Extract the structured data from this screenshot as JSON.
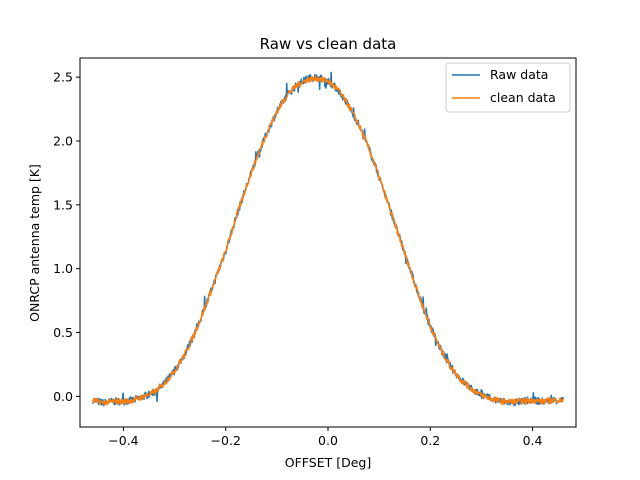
{
  "chart_data": {
    "type": "line",
    "title": "Raw vs clean data",
    "xlabel": "OFFSET [Deg]",
    "ylabel": "ONRCP antenna temp [K]",
    "xlim": [
      -0.485,
      0.485
    ],
    "ylim": [
      -0.24,
      2.65
    ],
    "x_ticks": [
      -0.4,
      -0.2,
      0.0,
      0.2,
      0.4
    ],
    "x_tick_labels": [
      "−0.4",
      "−0.2",
      "0.0",
      "0.2",
      "0.4"
    ],
    "y_ticks": [
      0.0,
      0.5,
      1.0,
      1.5,
      2.0,
      2.5
    ],
    "y_tick_labels": [
      "0.0",
      "0.5",
      "1.0",
      "1.5",
      "2.0",
      "2.5"
    ],
    "grid": false,
    "legend_position": "upper right",
    "series": [
      {
        "name": "Raw data",
        "color": "#1f77b4",
        "x": [
          -0.46,
          -0.44,
          -0.42,
          -0.4,
          -0.38,
          -0.36,
          -0.34,
          -0.32,
          -0.3,
          -0.28,
          -0.26,
          -0.24,
          -0.22,
          -0.2,
          -0.18,
          -0.16,
          -0.14,
          -0.12,
          -0.1,
          -0.08,
          -0.06,
          -0.04,
          -0.02,
          0.0,
          0.02,
          0.04,
          0.06,
          0.08,
          0.1,
          0.12,
          0.14,
          0.16,
          0.18,
          0.2,
          0.22,
          0.24,
          0.26,
          0.28,
          0.3,
          0.32,
          0.34,
          0.36,
          0.38,
          0.4,
          0.42,
          0.44,
          0.46
        ],
        "y": [
          -0.03,
          -0.05,
          -0.04,
          -0.04,
          -0.03,
          0.0,
          0.03,
          0.1,
          0.2,
          0.33,
          0.5,
          0.7,
          0.92,
          1.14,
          1.4,
          1.64,
          1.86,
          2.06,
          2.23,
          2.36,
          2.44,
          2.49,
          2.5,
          2.47,
          2.4,
          2.28,
          2.13,
          1.94,
          1.72,
          1.48,
          1.24,
          1.0,
          0.76,
          0.55,
          0.37,
          0.23,
          0.13,
          0.06,
          0.01,
          -0.02,
          -0.04,
          -0.05,
          -0.04,
          -0.03,
          -0.04,
          -0.03,
          -0.03
        ]
      },
      {
        "name": "clean data",
        "color": "#ff7f0e",
        "x": [
          -0.46,
          -0.44,
          -0.42,
          -0.4,
          -0.38,
          -0.36,
          -0.34,
          -0.32,
          -0.3,
          -0.28,
          -0.26,
          -0.24,
          -0.22,
          -0.2,
          -0.18,
          -0.16,
          -0.14,
          -0.12,
          -0.1,
          -0.08,
          -0.06,
          -0.04,
          -0.02,
          0.0,
          0.02,
          0.04,
          0.06,
          0.08,
          0.1,
          0.12,
          0.14,
          0.16,
          0.18,
          0.2,
          0.22,
          0.24,
          0.26,
          0.28,
          0.3,
          0.32,
          0.34,
          0.36,
          0.38,
          0.4,
          0.42,
          0.44,
          0.46
        ],
        "y": [
          -0.03,
          -0.05,
          -0.04,
          -0.04,
          -0.03,
          0.0,
          0.03,
          0.1,
          0.2,
          0.33,
          0.5,
          0.7,
          0.92,
          1.14,
          1.4,
          1.64,
          1.86,
          2.06,
          2.23,
          2.36,
          2.44,
          2.48,
          2.49,
          2.47,
          2.4,
          2.28,
          2.13,
          1.94,
          1.72,
          1.48,
          1.24,
          1.0,
          0.76,
          0.55,
          0.37,
          0.23,
          0.13,
          0.06,
          0.01,
          -0.02,
          -0.04,
          -0.04,
          -0.04,
          -0.03,
          -0.04,
          -0.03,
          -0.03
        ]
      }
    ]
  }
}
